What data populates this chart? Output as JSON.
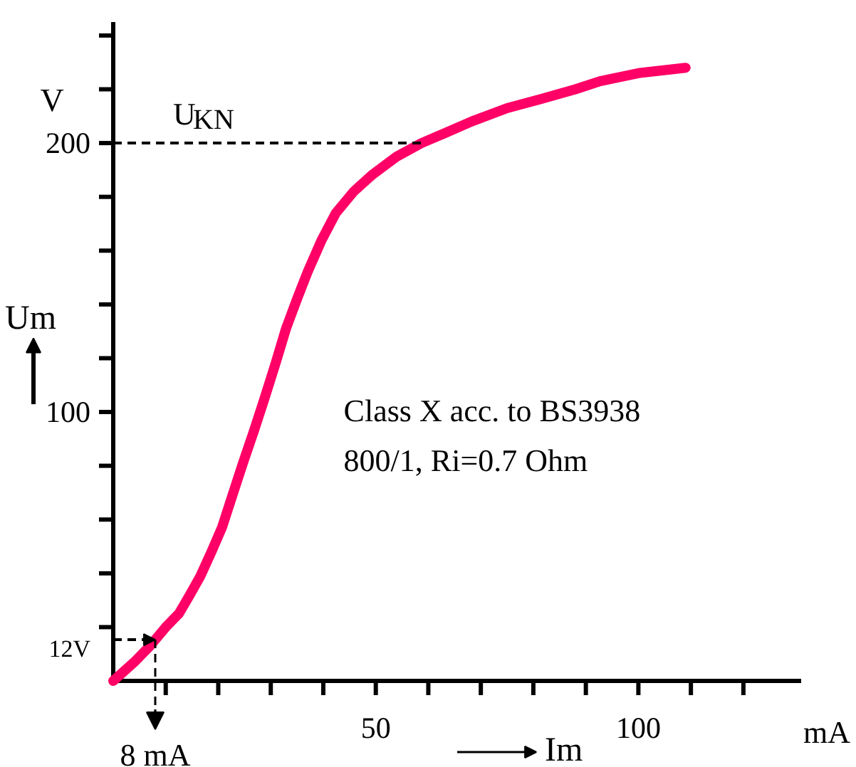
{
  "chart_data": {
    "type": "line",
    "xlabel": "Im",
    "ylabel": "Um",
    "x": [
      0,
      4,
      7,
      10,
      12.5,
      14.6,
      16.6,
      18.7,
      20.7,
      22.7,
      24.7,
      26.8,
      28.8,
      30.9,
      32.9,
      35,
      37,
      39.7,
      42.4,
      45.8,
      49.2,
      54,
      58.7,
      63.5,
      68.2,
      75,
      82.6,
      88,
      92.7,
      100,
      109
    ],
    "series": [
      {
        "color": "#ff0066",
        "values": [
          0,
          7,
          13,
          20,
          25,
          32,
          39,
          48,
          57,
          69,
          81,
          93,
          105,
          118,
          131,
          142,
          152,
          164,
          174,
          182,
          188,
          195,
          200,
          204,
          208,
          213,
          217,
          220,
          223,
          226,
          228
        ]
      }
    ],
    "xlim": [
      0,
      131
    ],
    "ylim": [
      0,
      245
    ],
    "xticks": [
      {
        "value": 10,
        "label": null
      },
      {
        "value": 20,
        "label": null
      },
      {
        "value": 30,
        "label": null
      },
      {
        "value": 40,
        "label": null
      },
      50,
      {
        "value": 60,
        "label": null
      },
      {
        "value": 70,
        "label": null
      },
      {
        "value": 80,
        "label": null
      },
      {
        "value": 90,
        "label": null
      },
      100,
      {
        "value": 110,
        "label": null
      },
      {
        "value": 120,
        "label": null
      }
    ],
    "yticks": [
      {
        "value": 12,
        "label": "12V"
      },
      {
        "value": 20,
        "label": null
      },
      {
        "value": 40,
        "label": null
      },
      {
        "value": 60,
        "label": null
      },
      {
        "value": 80,
        "label": null
      },
      100,
      {
        "value": 120,
        "label": null
      },
      {
        "value": 140,
        "label": null
      },
      {
        "value": 160,
        "label": null
      },
      {
        "value": 180,
        "label": null
      },
      200,
      {
        "value": 220,
        "label": null
      },
      {
        "value": 240,
        "label": null
      }
    ],
    "ref_lines": [
      {
        "axis": "y",
        "value": 200,
        "label": "U$_{KN}$",
        "line_style": "dashed"
      },
      {
        "axis": "x",
        "value": 8,
        "label": "8 mA",
        "line_style": "dashed"
      }
    ],
    "annotations": [
      "V",
      "mA",
      "Class X acc. to BS3938",
      "800/1, Ri=0.7 Ohm"
    ],
    "grid": false,
    "marker": "none",
    "line_style": "solid"
  }
}
